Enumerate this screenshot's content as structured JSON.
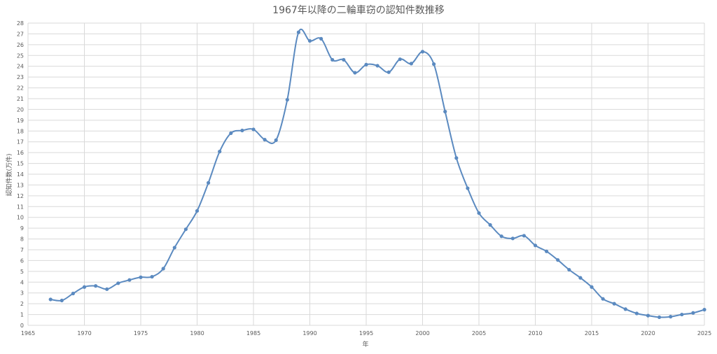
{
  "chart_data": {
    "type": "line",
    "title": "1967年以降の二輪車窃の認知件数推移",
    "xlabel": "年",
    "ylabel": "認知件数(万件)",
    "xlim": [
      1965,
      2025
    ],
    "ylim": [
      0,
      28
    ],
    "x_ticks": [
      1965,
      1970,
      1975,
      1980,
      1985,
      1990,
      1995,
      2000,
      2005,
      2010,
      2015,
      2020,
      2025
    ],
    "y_ticks": [
      0,
      1,
      2,
      3,
      4,
      5,
      6,
      7,
      8,
      9,
      10,
      11,
      12,
      13,
      14,
      15,
      16,
      17,
      18,
      19,
      20,
      21,
      22,
      23,
      24,
      25,
      26,
      27,
      28
    ],
    "grid": true,
    "legend": "none",
    "colors": {
      "line": "#5b8ac0",
      "grid": "#d9d9d9",
      "text": "#595959"
    },
    "series": [
      {
        "x": [
          1967,
          1968,
          1969,
          1970,
          1971,
          1972,
          1973,
          1974,
          1975,
          1976,
          1977,
          1978,
          1979,
          1980,
          1981,
          1982,
          1983,
          1984,
          1985,
          1986,
          1987,
          1988,
          1989,
          1990,
          1991,
          1992,
          1993,
          1994,
          1995,
          1996,
          1997,
          1998,
          1999,
          2000,
          2001,
          2002,
          2003,
          2004,
          2005,
          2006,
          2007,
          2008,
          2009,
          2010,
          2011,
          2012,
          2013,
          2014,
          2015,
          2016,
          2017,
          2018,
          2019,
          2020,
          2021,
          2022,
          2023,
          2024,
          2025
        ],
        "values": [
          2.4,
          2.3,
          2.95,
          3.55,
          3.65,
          3.35,
          3.9,
          4.2,
          4.45,
          4.5,
          5.25,
          7.2,
          8.9,
          10.6,
          13.2,
          16.1,
          17.8,
          18.05,
          18.15,
          17.2,
          17.15,
          20.9,
          27.15,
          26.35,
          26.55,
          24.6,
          24.6,
          23.4,
          24.15,
          24.05,
          23.45,
          24.65,
          24.25,
          25.35,
          24.2,
          19.8,
          15.5,
          12.7,
          10.4,
          9.3,
          8.25,
          8.05,
          8.3,
          7.4,
          6.85,
          6.05,
          5.15,
          4.4,
          3.55,
          2.45,
          2.0,
          1.5,
          1.1,
          0.9,
          0.75,
          0.8,
          1.0,
          1.15,
          1.45
        ]
      }
    ]
  }
}
